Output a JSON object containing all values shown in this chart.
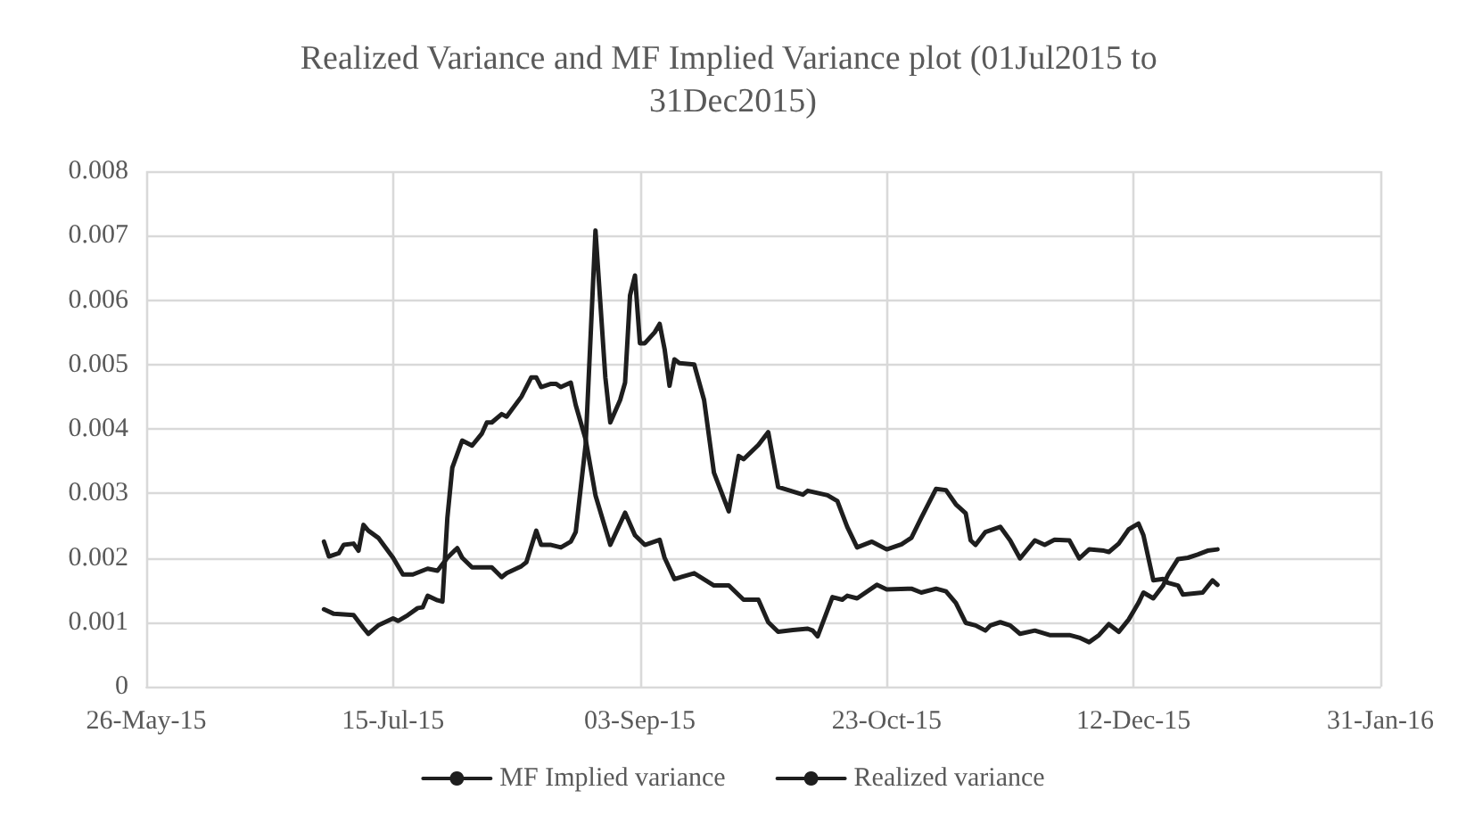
{
  "chart_data": {
    "type": "line",
    "title": "Realized Variance and MF Implied Variance plot (01Jul2015 to 31Dec2015)",
    "xlim": [
      "2015-05-26",
      "2016-01-31"
    ],
    "xticks": [
      {
        "value": "2015-05-26",
        "label": "26-May-15"
      },
      {
        "value": "2015-07-15",
        "label": "15-Jul-15"
      },
      {
        "value": "2015-09-03",
        "label": "03-Sep-15"
      },
      {
        "value": "2015-10-23",
        "label": "23-Oct-15"
      },
      {
        "value": "2015-12-12",
        "label": "12-Dec-15"
      },
      {
        "value": "2016-01-31",
        "label": "31-Jan-16"
      }
    ],
    "ylim": [
      0,
      0.008
    ],
    "yticks": [
      0,
      0.001,
      0.002,
      0.003,
      0.004,
      0.005,
      0.006,
      0.007,
      0.008
    ],
    "grid": true,
    "legend": "bottom",
    "marker": "none",
    "line_style": "solid",
    "series": [
      {
        "name": "MF Implied variance",
        "color": "#1e1e1e",
        "x": [
          "2015-07-01",
          "2015-07-03",
          "2015-07-07",
          "2015-07-09",
          "2015-07-10",
          "2015-07-12",
          "2015-07-15",
          "2015-07-16",
          "2015-07-18",
          "2015-07-20",
          "2015-07-21",
          "2015-07-22",
          "2015-07-24",
          "2015-07-25",
          "2015-07-26",
          "2015-07-27",
          "2015-07-29",
          "2015-07-31",
          "2015-08-02",
          "2015-08-03",
          "2015-08-04",
          "2015-08-06",
          "2015-08-07",
          "2015-08-10",
          "2015-08-12",
          "2015-08-13",
          "2015-08-14",
          "2015-08-16",
          "2015-08-17",
          "2015-08-18",
          "2015-08-20",
          "2015-08-21",
          "2015-08-23",
          "2015-08-25",
          "2015-08-28",
          "2015-08-31",
          "2015-09-02",
          "2015-09-04",
          "2015-09-07",
          "2015-09-08",
          "2015-09-10",
          "2015-09-14",
          "2015-09-18",
          "2015-09-21",
          "2015-09-24",
          "2015-09-27",
          "2015-09-29",
          "2015-10-01",
          "2015-10-04",
          "2015-10-07",
          "2015-10-08",
          "2015-10-09",
          "2015-10-12",
          "2015-10-14",
          "2015-10-15",
          "2015-10-17",
          "2015-10-21",
          "2015-10-23",
          "2015-10-28",
          "2015-10-30",
          "2015-11-02",
          "2015-11-04",
          "2015-11-06",
          "2015-11-08",
          "2015-11-10",
          "2015-11-12",
          "2015-11-13",
          "2015-11-15",
          "2015-11-17",
          "2015-11-19",
          "2015-11-22",
          "2015-11-25",
          "2015-11-29",
          "2015-12-01",
          "2015-12-03",
          "2015-12-05",
          "2015-12-07",
          "2015-12-09",
          "2015-12-11",
          "2015-12-13",
          "2015-12-14",
          "2015-12-16",
          "2015-12-18",
          "2015-12-19",
          "2015-12-21",
          "2015-12-23",
          "2015-12-25",
          "2015-12-27",
          "2015-12-29"
        ],
        "values": [
          0.0012,
          0.00113,
          0.00111,
          0.00091,
          0.00082,
          0.00095,
          0.00106,
          0.00102,
          0.00111,
          0.00122,
          0.00123,
          0.00141,
          0.00134,
          0.00132,
          0.00262,
          0.0034,
          0.00382,
          0.00374,
          0.00393,
          0.0041,
          0.0041,
          0.00423,
          0.00419,
          0.0045,
          0.0048,
          0.0048,
          0.00465,
          0.0047,
          0.0047,
          0.00465,
          0.00472,
          0.00437,
          0.00384,
          0.00297,
          0.0022,
          0.0027,
          0.00235,
          0.0022,
          0.00228,
          0.002,
          0.00167,
          0.00176,
          0.00157,
          0.00157,
          0.00135,
          0.00135,
          0.001,
          0.00085,
          0.00088,
          0.0009,
          0.00087,
          0.00078,
          0.00139,
          0.00135,
          0.00141,
          0.00137,
          0.00158,
          0.00151,
          0.00152,
          0.00146,
          0.00152,
          0.00148,
          0.0013,
          0.00099,
          0.00095,
          0.00087,
          0.00095,
          0.001,
          0.00095,
          0.00082,
          0.00087,
          0.0008,
          0.0008,
          0.00076,
          0.00069,
          0.0008,
          0.00097,
          0.00085,
          0.00104,
          0.0013,
          0.00146,
          0.00137,
          0.00157,
          0.00174,
          0.00198,
          0.002,
          0.00205,
          0.00211,
          0.00213
        ]
      },
      {
        "name": "Realized variance",
        "color": "#1e1e1e",
        "x": [
          "2015-07-01",
          "2015-07-02",
          "2015-07-04",
          "2015-07-05",
          "2015-07-07",
          "2015-07-08",
          "2015-07-09",
          "2015-07-10",
          "2015-07-12",
          "2015-07-15",
          "2015-07-17",
          "2015-07-19",
          "2015-07-22",
          "2015-07-24",
          "2015-07-25",
          "2015-07-26",
          "2015-07-28",
          "2015-07-29",
          "2015-07-31",
          "2015-08-04",
          "2015-08-06",
          "2015-08-07",
          "2015-08-10",
          "2015-08-11",
          "2015-08-13",
          "2015-08-14",
          "2015-08-16",
          "2015-08-18",
          "2015-08-20",
          "2015-08-21",
          "2015-08-23",
          "2015-08-25",
          "2015-08-27",
          "2015-08-28",
          "2015-08-30",
          "2015-08-31",
          "2015-09-01",
          "2015-09-02",
          "2015-09-03",
          "2015-09-04",
          "2015-09-06",
          "2015-09-07",
          "2015-09-08",
          "2015-09-09",
          "2015-09-10",
          "2015-09-11",
          "2015-09-14",
          "2015-09-16",
          "2015-09-18",
          "2015-09-21",
          "2015-09-23",
          "2015-09-24",
          "2015-09-27",
          "2015-09-29",
          "2015-10-01",
          "2015-10-06",
          "2015-10-07",
          "2015-10-11",
          "2015-10-13",
          "2015-10-15",
          "2015-10-17",
          "2015-10-20",
          "2015-10-23",
          "2015-10-26",
          "2015-10-28",
          "2015-10-30",
          "2015-11-02",
          "2015-11-04",
          "2015-11-06",
          "2015-11-08",
          "2015-11-09",
          "2015-11-10",
          "2015-11-12",
          "2015-11-15",
          "2015-11-17",
          "2015-11-19",
          "2015-11-22",
          "2015-11-24",
          "2015-11-26",
          "2015-11-29",
          "2015-12-01",
          "2015-12-03",
          "2015-12-06",
          "2015-12-07",
          "2015-12-09",
          "2015-12-11",
          "2015-12-13",
          "2015-12-14",
          "2015-12-16",
          "2015-12-18",
          "2015-12-19",
          "2015-12-21",
          "2015-12-22",
          "2015-12-26",
          "2015-12-28",
          "2015-12-29"
        ],
        "values": [
          0.00225,
          0.00202,
          0.00207,
          0.0022,
          0.00222,
          0.00211,
          0.00251,
          0.00242,
          0.00231,
          0.002,
          0.00174,
          0.00174,
          0.00183,
          0.0018,
          0.0019,
          0.002,
          0.00215,
          0.002,
          0.00185,
          0.00185,
          0.0017,
          0.00176,
          0.00187,
          0.00193,
          0.00242,
          0.0022,
          0.0022,
          0.00216,
          0.00225,
          0.0024,
          0.00375,
          0.00708,
          0.0048,
          0.0041,
          0.00445,
          0.00472,
          0.00607,
          0.00638,
          0.00533,
          0.00533,
          0.0055,
          0.00563,
          0.00524,
          0.00467,
          0.00508,
          0.00502,
          0.005,
          0.00445,
          0.00332,
          0.00272,
          0.00358,
          0.00353,
          0.00375,
          0.00395,
          0.0031,
          0.00298,
          0.00304,
          0.00297,
          0.00288,
          0.00248,
          0.00216,
          0.00225,
          0.00213,
          0.00221,
          0.00231,
          0.00262,
          0.00307,
          0.00305,
          0.00283,
          0.00269,
          0.00227,
          0.0022,
          0.0024,
          0.00248,
          0.00227,
          0.00199,
          0.00227,
          0.0022,
          0.00228,
          0.00227,
          0.00199,
          0.00213,
          0.00211,
          0.00209,
          0.00222,
          0.00244,
          0.00253,
          0.00235,
          0.00165,
          0.00167,
          0.00161,
          0.00157,
          0.00143,
          0.00146,
          0.00165,
          0.00158
        ]
      }
    ]
  }
}
